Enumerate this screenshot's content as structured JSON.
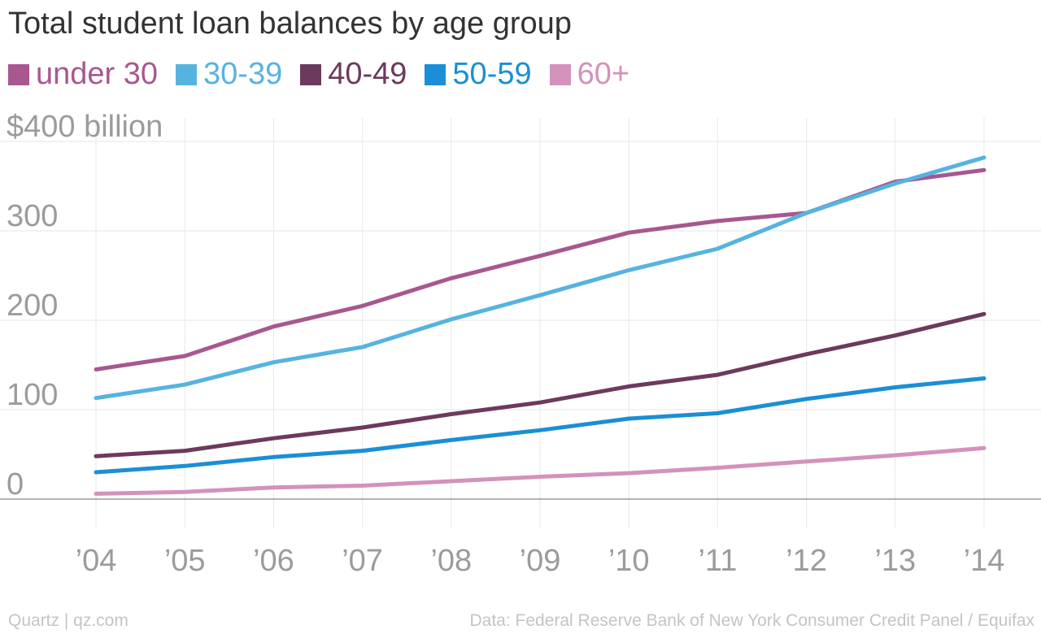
{
  "chart_data": {
    "type": "line",
    "title": "Total student loan balances by age group",
    "categories": [
      "’04",
      "’05",
      "’06",
      "’07",
      "’08",
      "’09",
      "’10",
      "’11",
      "’12",
      "’13",
      "’14"
    ],
    "series": [
      {
        "name": "under 30",
        "color": "#a8578f",
        "values": [
          145,
          160,
          193,
          216,
          247,
          272,
          298,
          311,
          320,
          355,
          368
        ]
      },
      {
        "name": "30-39",
        "color": "#56b3e0",
        "values": [
          113,
          128,
          153,
          170,
          201,
          228,
          256,
          280,
          320,
          353,
          382
        ]
      },
      {
        "name": "40-49",
        "color": "#6c3a5c",
        "values": [
          48,
          54,
          68,
          80,
          95,
          108,
          126,
          139,
          162,
          183,
          207
        ]
      },
      {
        "name": "50-59",
        "color": "#1a8fd6",
        "values": [
          30,
          37,
          47,
          54,
          66,
          77,
          90,
          96,
          112,
          125,
          135
        ]
      },
      {
        "name": "60+",
        "color": "#d392bb",
        "values": [
          6,
          8,
          13,
          15,
          20,
          25,
          29,
          35,
          42,
          49,
          57
        ]
      }
    ],
    "y_ticks": [
      {
        "value": 0,
        "label": "0"
      },
      {
        "value": 100,
        "label": "100"
      },
      {
        "value": 200,
        "label": "200"
      },
      {
        "value": 300,
        "label": "300"
      },
      {
        "value": 400,
        "label": "$400 billion"
      }
    ],
    "ylim": [
      0,
      400
    ],
    "grid": true,
    "legend_position": "top-left"
  },
  "footer": {
    "credit": "Quartz | qz.com",
    "source": "Data: Federal Reserve Bank of New York Consumer Credit Panel / Equifax"
  }
}
